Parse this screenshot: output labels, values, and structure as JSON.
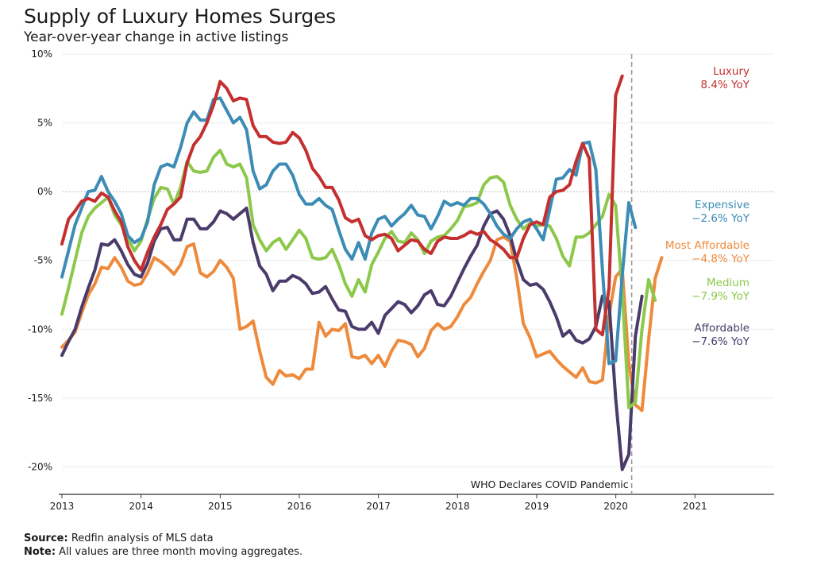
{
  "title": "Supply of Luxury Homes Surges",
  "subtitle": "Year-over-year change in active listings",
  "footer": {
    "source_label": "Source:",
    "source_text": " Redfin analysis of MLS data",
    "note_label": "Note:",
    "note_text": " All values are three month moving aggregates."
  },
  "chart_data": {
    "type": "line",
    "title": "Supply of Luxury Homes Surges",
    "subtitle": "Year-over-year change in active listings",
    "xlabel": "",
    "ylabel": "",
    "xlim": [
      2013.0,
      2022.0
    ],
    "ylim": [
      -22,
      10
    ],
    "y_ticks": [
      10,
      5,
      0,
      -5,
      -10,
      -15,
      -20
    ],
    "y_tick_labels": [
      "10%",
      "5%",
      "0%",
      "-5%",
      "-10%",
      "-15%",
      "-20%"
    ],
    "x_ticks": [
      2013,
      2014,
      2015,
      2016,
      2017,
      2018,
      2019,
      2020,
      2021
    ],
    "x_tick_labels": [
      "2013",
      "2014",
      "2015",
      "2016",
      "2017",
      "2018",
      "2019",
      "2020",
      "2021"
    ],
    "grid": true,
    "annotation": {
      "x": 2020.2,
      "text": "WHO Declares COVID Pandemic"
    },
    "series": [
      {
        "name": "Most Affordable",
        "end_label": [
          "Most Affordable",
          "−4.8% YoY"
        ],
        "color": "#ee8a3c",
        "x_start": 2013.0,
        "x_step": 0.0833,
        "values": [
          -11.3,
          -10.8,
          -10.2,
          -8.8,
          -7.5,
          -6.7,
          -5.5,
          -5.6,
          -4.8,
          -5.5,
          -6.5,
          -6.8,
          -6.7,
          -5.9,
          -4.8,
          -5.1,
          -5.5,
          -6.0,
          -5.3,
          -4.0,
          -3.8,
          -5.9,
          -6.2,
          -5.8,
          -5.0,
          -5.5,
          -6.3,
          -10.0,
          -9.8,
          -9.4,
          -11.6,
          -13.5,
          -14.0,
          -13.0,
          -13.4,
          -13.3,
          -13.6,
          -12.9,
          -12.9,
          -9.5,
          -10.5,
          -10.0,
          -10.1,
          -9.6,
          -12.0,
          -12.1,
          -11.9,
          -12.5,
          -11.9,
          -12.7,
          -11.6,
          -10.8,
          -10.9,
          -11.1,
          -12.0,
          -11.4,
          -10.1,
          -9.6,
          -10.0,
          -9.8,
          -9.1,
          -8.2,
          -7.7,
          -6.7,
          -5.8,
          -5.0,
          -3.5,
          -3.3,
          -3.6,
          -6.3,
          -9.6,
          -10.6,
          -12.0,
          -11.8,
          -11.6,
          -12.2,
          -12.7,
          -13.1,
          -13.5,
          -12.8,
          -13.8,
          -13.9,
          -13.7,
          -9.0,
          -6.2,
          -5.6,
          -12.5,
          -15.5,
          -15.9,
          -10.8,
          -6.3,
          -4.8
        ]
      },
      {
        "name": "Affordable",
        "end_label": [
          "Affordable",
          "−7.6% YoY"
        ],
        "color": "#4a3b6b",
        "x_start": 2013.0,
        "x_step": 0.0833,
        "values": [
          -11.9,
          -10.9,
          -10.0,
          -8.4,
          -7.0,
          -5.7,
          -3.8,
          -3.9,
          -3.5,
          -4.3,
          -5.3,
          -6.0,
          -6.2,
          -5.2,
          -3.6,
          -2.7,
          -2.6,
          -3.5,
          -3.5,
          -2.0,
          -2.0,
          -2.7,
          -2.7,
          -2.2,
          -1.4,
          -1.6,
          -2.0,
          -1.6,
          -1.2,
          -3.7,
          -5.4,
          -6.0,
          -7.2,
          -6.5,
          -6.5,
          -6.1,
          -6.3,
          -6.7,
          -7.4,
          -7.3,
          -6.9,
          -7.8,
          -8.6,
          -8.7,
          -9.8,
          -10.0,
          -10.0,
          -9.5,
          -10.3,
          -9.0,
          -8.5,
          -8.0,
          -8.2,
          -8.8,
          -8.3,
          -7.5,
          -7.2,
          -8.2,
          -8.3,
          -7.6,
          -6.6,
          -5.6,
          -4.7,
          -3.9,
          -2.5,
          -1.6,
          -1.4,
          -2.0,
          -3.2,
          -5.0,
          -6.4,
          -6.8,
          -6.7,
          -7.1,
          -8.0,
          -9.1,
          -10.5,
          -10.1,
          -10.8,
          -11.0,
          -10.7,
          -9.8,
          -7.6,
          -8.0,
          -15.0,
          -20.2,
          -19.1,
          -10.5,
          -7.6
        ]
      },
      {
        "name": "Medium",
        "end_label": [
          "Medium",
          "−7.9% YoY"
        ],
        "color": "#8cc84b",
        "x_start": 2013.0,
        "x_step": 0.0833,
        "values": [
          -8.9,
          -7.0,
          -5.0,
          -3.0,
          -1.8,
          -1.2,
          -0.8,
          -0.4,
          -1.7,
          -2.4,
          -3.4,
          -4.3,
          -3.6,
          -2.0,
          -0.5,
          0.3,
          0.2,
          -0.9,
          0.3,
          2.2,
          1.5,
          1.4,
          1.5,
          2.5,
          3.0,
          2.0,
          1.8,
          2.0,
          1.0,
          -2.4,
          -3.5,
          -4.3,
          -3.7,
          -3.4,
          -4.2,
          -3.5,
          -2.8,
          -3.4,
          -4.8,
          -4.9,
          -4.8,
          -4.2,
          -5.3,
          -6.7,
          -7.6,
          -6.4,
          -7.3,
          -5.3,
          -4.4,
          -3.4,
          -2.9,
          -3.6,
          -3.7,
          -3.0,
          -3.5,
          -4.5,
          -3.6,
          -3.3,
          -3.2,
          -2.7,
          -2.1,
          -1.1,
          -1.0,
          -0.8,
          0.5,
          1.0,
          1.1,
          0.7,
          -1.0,
          -2.0,
          -2.7,
          -2.3,
          -2.5,
          -2.4,
          -2.5,
          -3.4,
          -4.7,
          -5.4,
          -3.3,
          -3.3,
          -3.0,
          -2.4,
          -1.8,
          -0.2,
          -1.0,
          -7.2,
          -15.7,
          -15.3,
          -10.0,
          -6.4,
          -7.9
        ]
      },
      {
        "name": "Expensive",
        "end_label": [
          "Expensive",
          "−2.6% YoY"
        ],
        "color": "#3c8cb5",
        "x_start": 2013.0,
        "x_step": 0.0833,
        "values": [
          -6.2,
          -4.3,
          -2.4,
          -1.2,
          0.0,
          0.1,
          1.1,
          0.0,
          -0.7,
          -1.6,
          -3.2,
          -3.7,
          -3.4,
          -2.2,
          0.5,
          1.8,
          2.0,
          1.8,
          3.2,
          5.0,
          5.8,
          5.2,
          5.2,
          6.7,
          6.8,
          5.9,
          5.0,
          5.4,
          4.5,
          1.5,
          0.2,
          0.5,
          1.5,
          2.0,
          2.0,
          1.2,
          -0.2,
          -0.9,
          -0.9,
          -0.5,
          -1.0,
          -1.3,
          -2.8,
          -4.2,
          -4.9,
          -3.7,
          -4.9,
          -3.0,
          -2.0,
          -1.8,
          -2.5,
          -2.0,
          -1.6,
          -1.0,
          -1.7,
          -1.8,
          -2.7,
          -1.8,
          -0.7,
          -1.0,
          -0.8,
          -1.0,
          -0.5,
          -0.5,
          -0.9,
          -1.6,
          -2.5,
          -3.1,
          -3.4,
          -2.7,
          -2.2,
          -2.0,
          -2.7,
          -3.5,
          -1.3,
          0.9,
          1.0,
          1.6,
          1.2,
          3.5,
          3.6,
          1.6,
          -5.7,
          -12.5,
          -12.3,
          -6.1,
          -0.8,
          -2.6
        ]
      },
      {
        "name": "Luxury",
        "end_label": [
          "Luxury",
          "8.4% YoY"
        ],
        "color": "#c43030",
        "x_start": 2013.0,
        "x_step": 0.0833,
        "values": [
          -3.8,
          -2.0,
          -1.4,
          -0.7,
          -0.5,
          -0.7,
          -0.1,
          -0.4,
          -1.4,
          -2.2,
          -4.0,
          -5.0,
          -5.7,
          -4.4,
          -3.3,
          -2.4,
          -1.3,
          -0.9,
          -0.4,
          2.1,
          3.4,
          4.0,
          5.0,
          6.3,
          8.0,
          7.5,
          6.6,
          6.8,
          6.7,
          4.8,
          4.0,
          4.0,
          3.6,
          3.5,
          3.6,
          4.3,
          3.9,
          3.0,
          1.7,
          1.1,
          0.3,
          0.3,
          -0.6,
          -1.9,
          -2.2,
          -2.0,
          -3.2,
          -3.5,
          -3.2,
          -3.1,
          -3.4,
          -4.3,
          -3.9,
          -3.5,
          -3.6,
          -4.2,
          -4.5,
          -3.6,
          -3.3,
          -3.4,
          -3.4,
          -3.2,
          -2.9,
          -3.1,
          -2.9,
          -3.5,
          -3.8,
          -4.2,
          -4.8,
          -4.8,
          -3.4,
          -2.4,
          -2.2,
          -2.4,
          -0.4,
          0.0,
          0.1,
          0.5,
          2.2,
          3.5,
          2.4,
          -10.0,
          -10.4,
          -7.0,
          7.0,
          8.4
        ]
      }
    ]
  }
}
